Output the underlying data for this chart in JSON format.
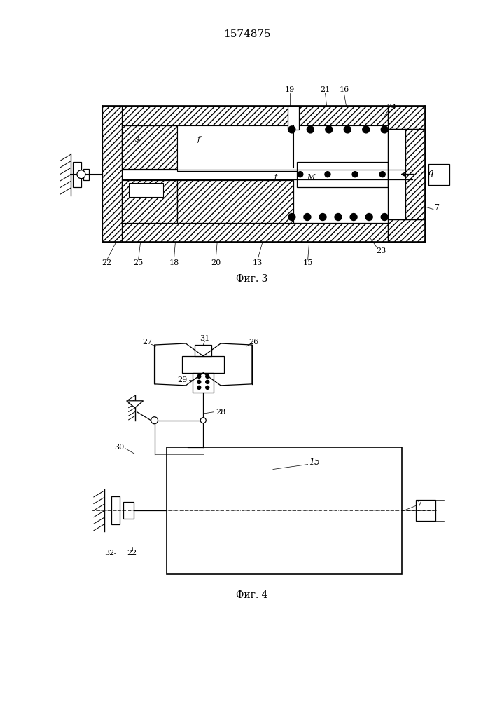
{
  "patent_number": "1574875",
  "fig3_caption": "Фиг. 3",
  "fig4_caption": "Фиг. 4",
  "bg": "#ffffff",
  "lc": "#000000"
}
